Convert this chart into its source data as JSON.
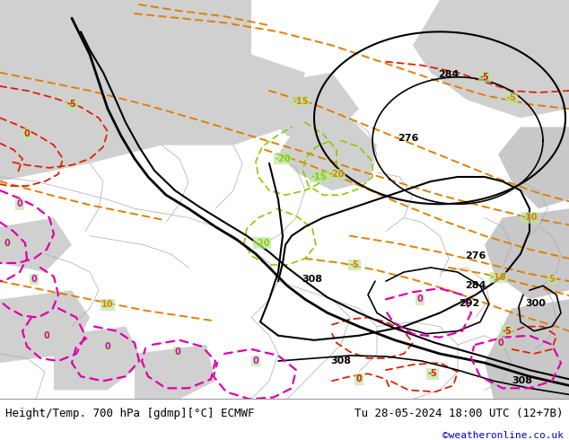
{
  "title_left": "Height/Temp. 700 hPa [gdmp][°C] ECMWF",
  "title_right": "Tu 28-05-2024 18:00 UTC (12+7B)",
  "credit": "©weatheronline.co.uk",
  "land_color": "#b8e8a0",
  "land_light": "#d0f0b8",
  "sea_color": "#c8dce8",
  "grey_color": "#d0d0d0",
  "footer_bg": "#ffffff",
  "footer_font_size": 9,
  "credit_color": "#0000cc",
  "fig_width": 6.34,
  "fig_height": 4.9,
  "dpi": 100,
  "black_lw": 2.0,
  "black_lw2": 1.5,
  "orange_lw": 1.4,
  "red_lw": 1.3,
  "magenta_lw": 1.6,
  "label_fs": 7,
  "border_color": "#aaaaaa",
  "border_lw": 0.5,
  "lime_color": "#80cc00",
  "lime_lw": 1.2
}
